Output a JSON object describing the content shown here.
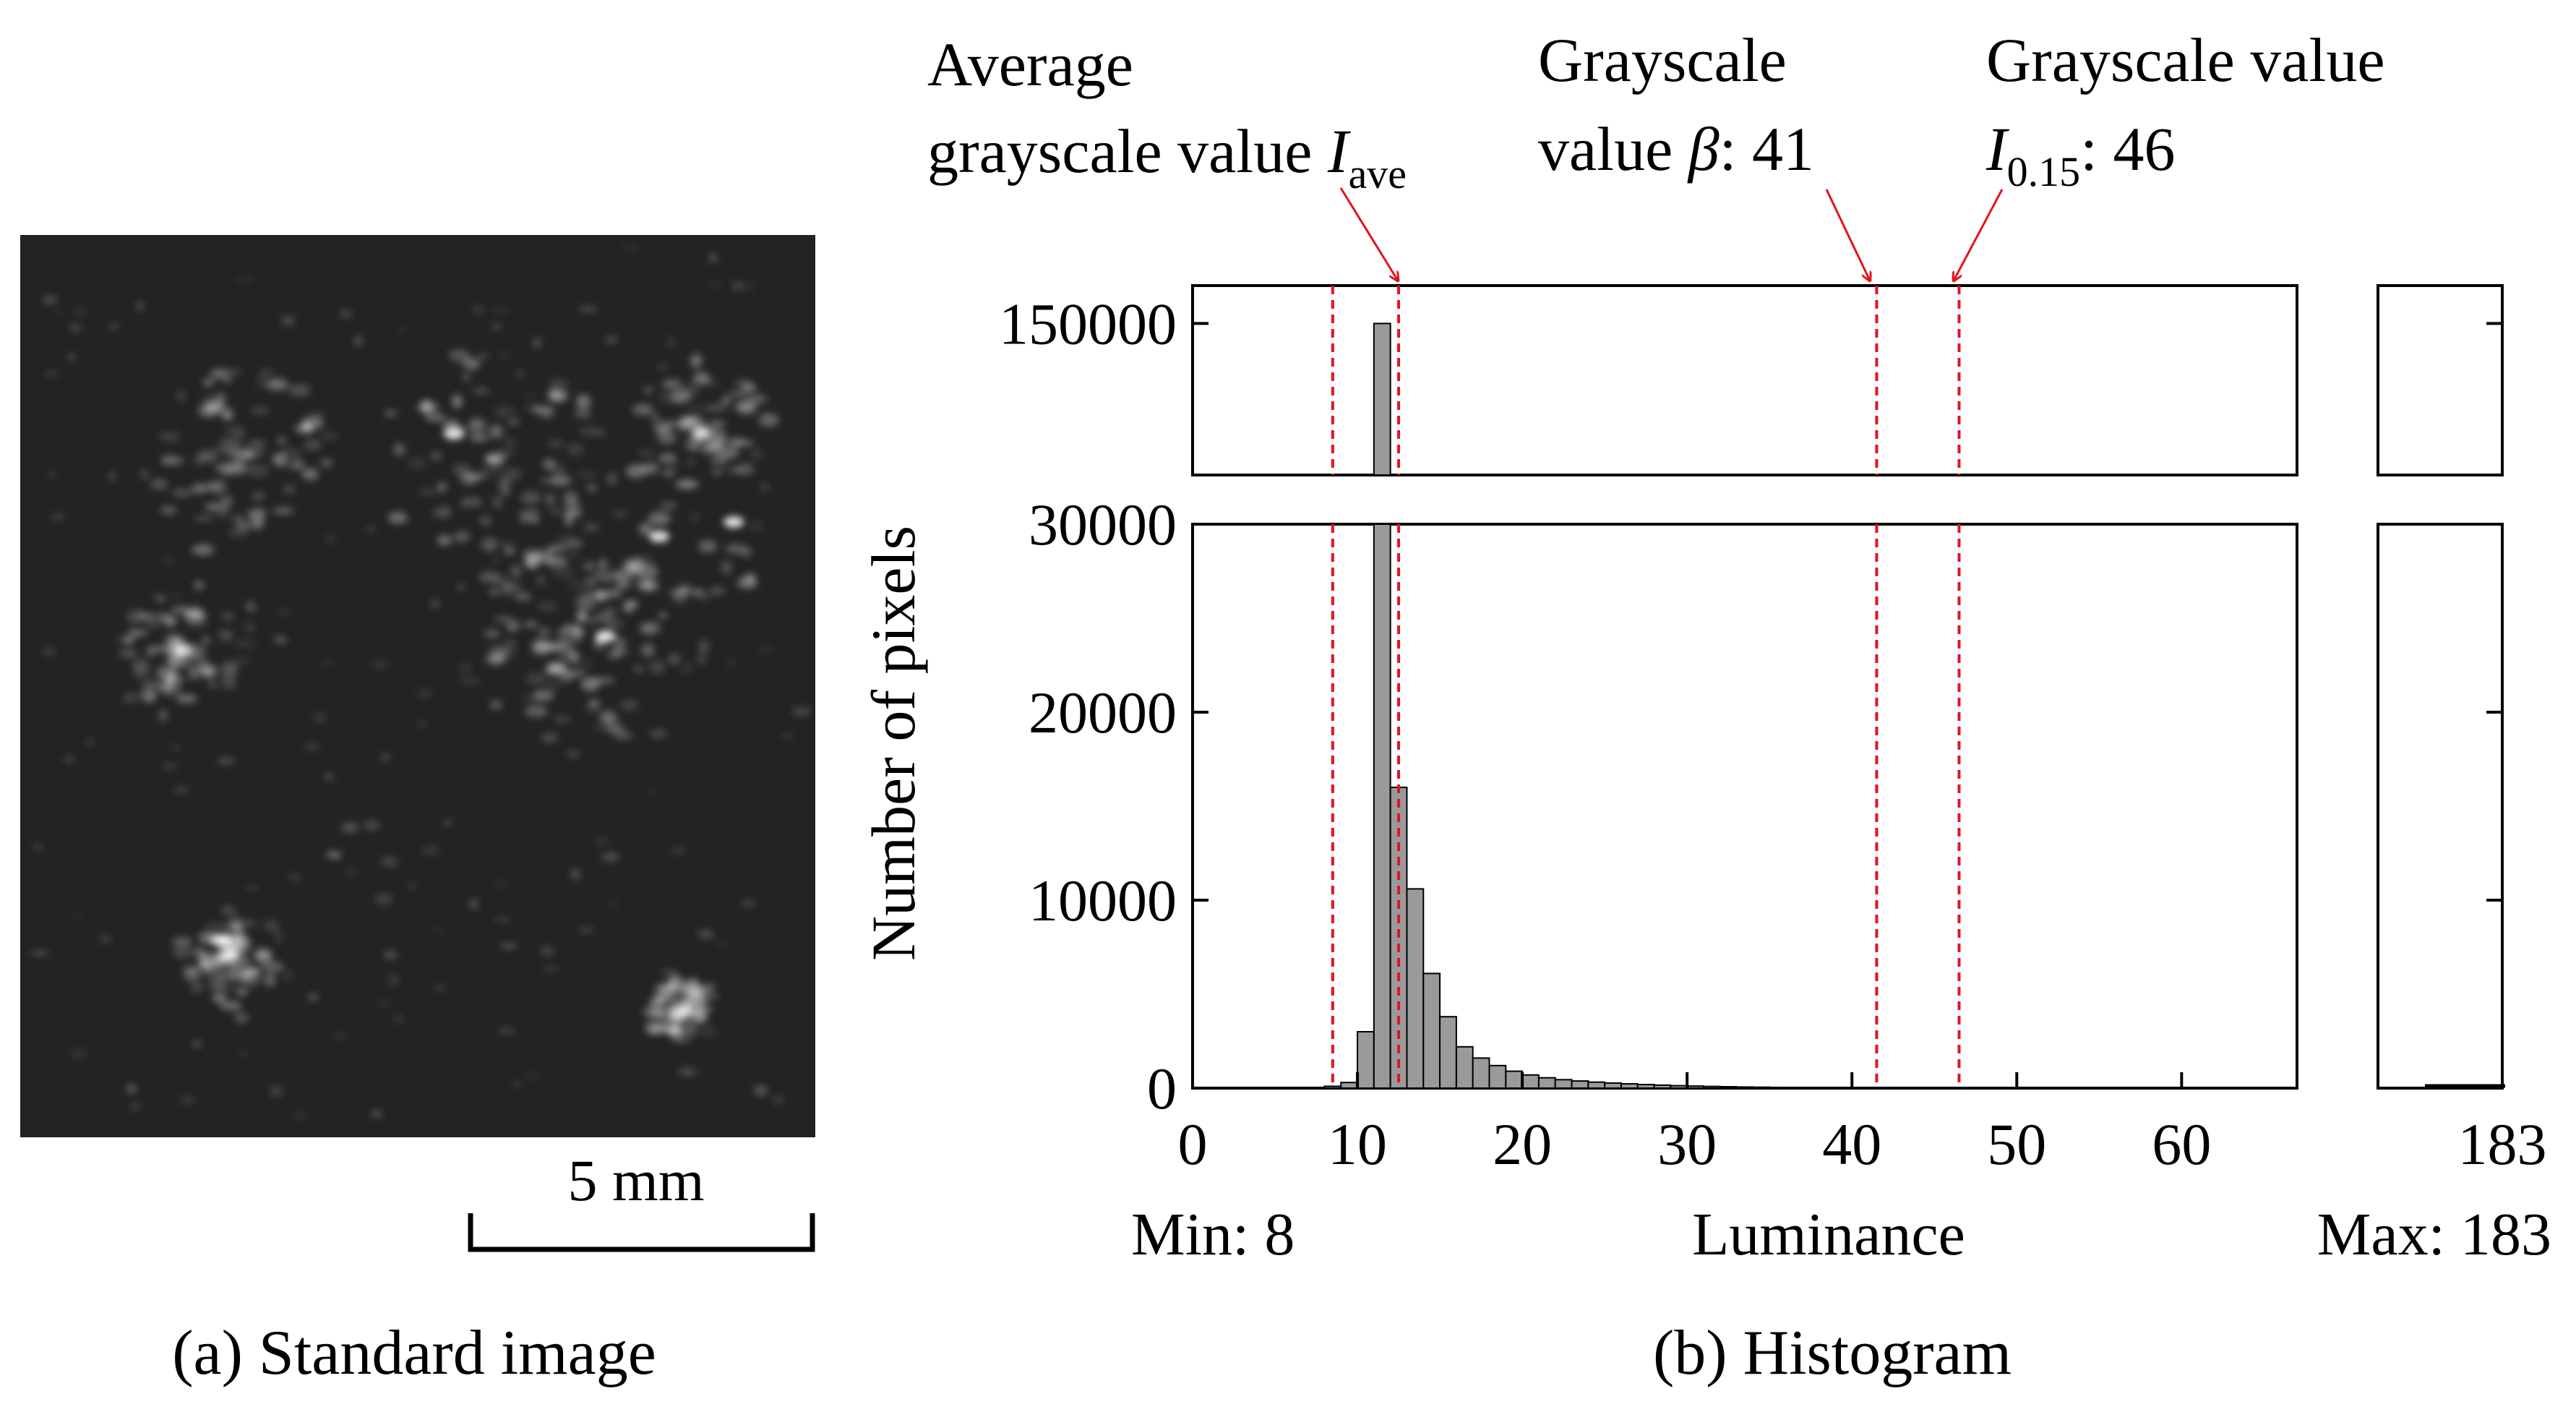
{
  "panel_a": {
    "caption": "(a) Standard image",
    "scale_bar_label": "5 mm",
    "image_background": "#232323",
    "speckle_color": "#ffffff"
  },
  "panel_b": {
    "caption": "(b) Histogram",
    "min_label": "Min: 8",
    "max_label": "Max: 183",
    "annotations": {
      "average": {
        "line1": "Average",
        "line2": "grayscale value ",
        "symbol": "I",
        "subscript": "ave"
      },
      "beta": {
        "line1": "Grayscale",
        "line2": "value ",
        "symbol": "β",
        "suffix": ": 41"
      },
      "i015": {
        "line1": "Grayscale value",
        "symbol": "I",
        "subscript": "0.15",
        "suffix": ": 46"
      }
    },
    "marker_color": "#e0161b",
    "bar_color": "#9a9a9a"
  },
  "chart_data": {
    "type": "bar",
    "title": "",
    "xlabel": "Luminance",
    "ylabel": "Number of pixels",
    "x_ticks": [
      "0",
      "10",
      "20",
      "30",
      "40",
      "50",
      "60"
    ],
    "x_tick_values": [
      0,
      10,
      20,
      30,
      40,
      50,
      60
    ],
    "x_break_tick": "183",
    "xlim": [
      0,
      67
    ],
    "y_axis_break": true,
    "ylim_lower": [
      0,
      30000
    ],
    "ylim_upper": [
      130000,
      155000
    ],
    "y_ticks_lower": [
      "0",
      "10000",
      "20000",
      "30000"
    ],
    "y_tick_values_lower": [
      0,
      10000,
      20000,
      30000
    ],
    "y_ticks_upper": [
      "150000"
    ],
    "y_tick_values_upper": [
      150000
    ],
    "bin_width": 1,
    "bins_start": [
      8,
      9,
      10,
      11,
      12,
      13,
      14,
      15,
      16,
      17,
      18,
      19,
      20,
      21,
      22,
      23,
      24,
      25,
      26,
      27,
      28,
      29,
      30,
      31,
      32,
      33,
      34,
      35,
      36,
      37,
      38,
      39,
      40,
      41
    ],
    "counts": [
      100,
      300,
      3000,
      150000,
      16000,
      10600,
      6100,
      3800,
      2200,
      1600,
      1200,
      900,
      700,
      550,
      450,
      380,
      320,
      270,
      230,
      190,
      160,
      130,
      110,
      90,
      75,
      60,
      50,
      40,
      35,
      30,
      25,
      20,
      15,
      10
    ],
    "tail_bin_start": 182,
    "tail_count": 100,
    "reference_lines": [
      {
        "name": "min",
        "x": 8.5
      },
      {
        "name": "average I_ave",
        "x": 12.5
      },
      {
        "name": "beta",
        "x": 41.5,
        "value_label": "41"
      },
      {
        "name": "I_0.15",
        "x": 46.5,
        "value_label": "46"
      }
    ]
  }
}
